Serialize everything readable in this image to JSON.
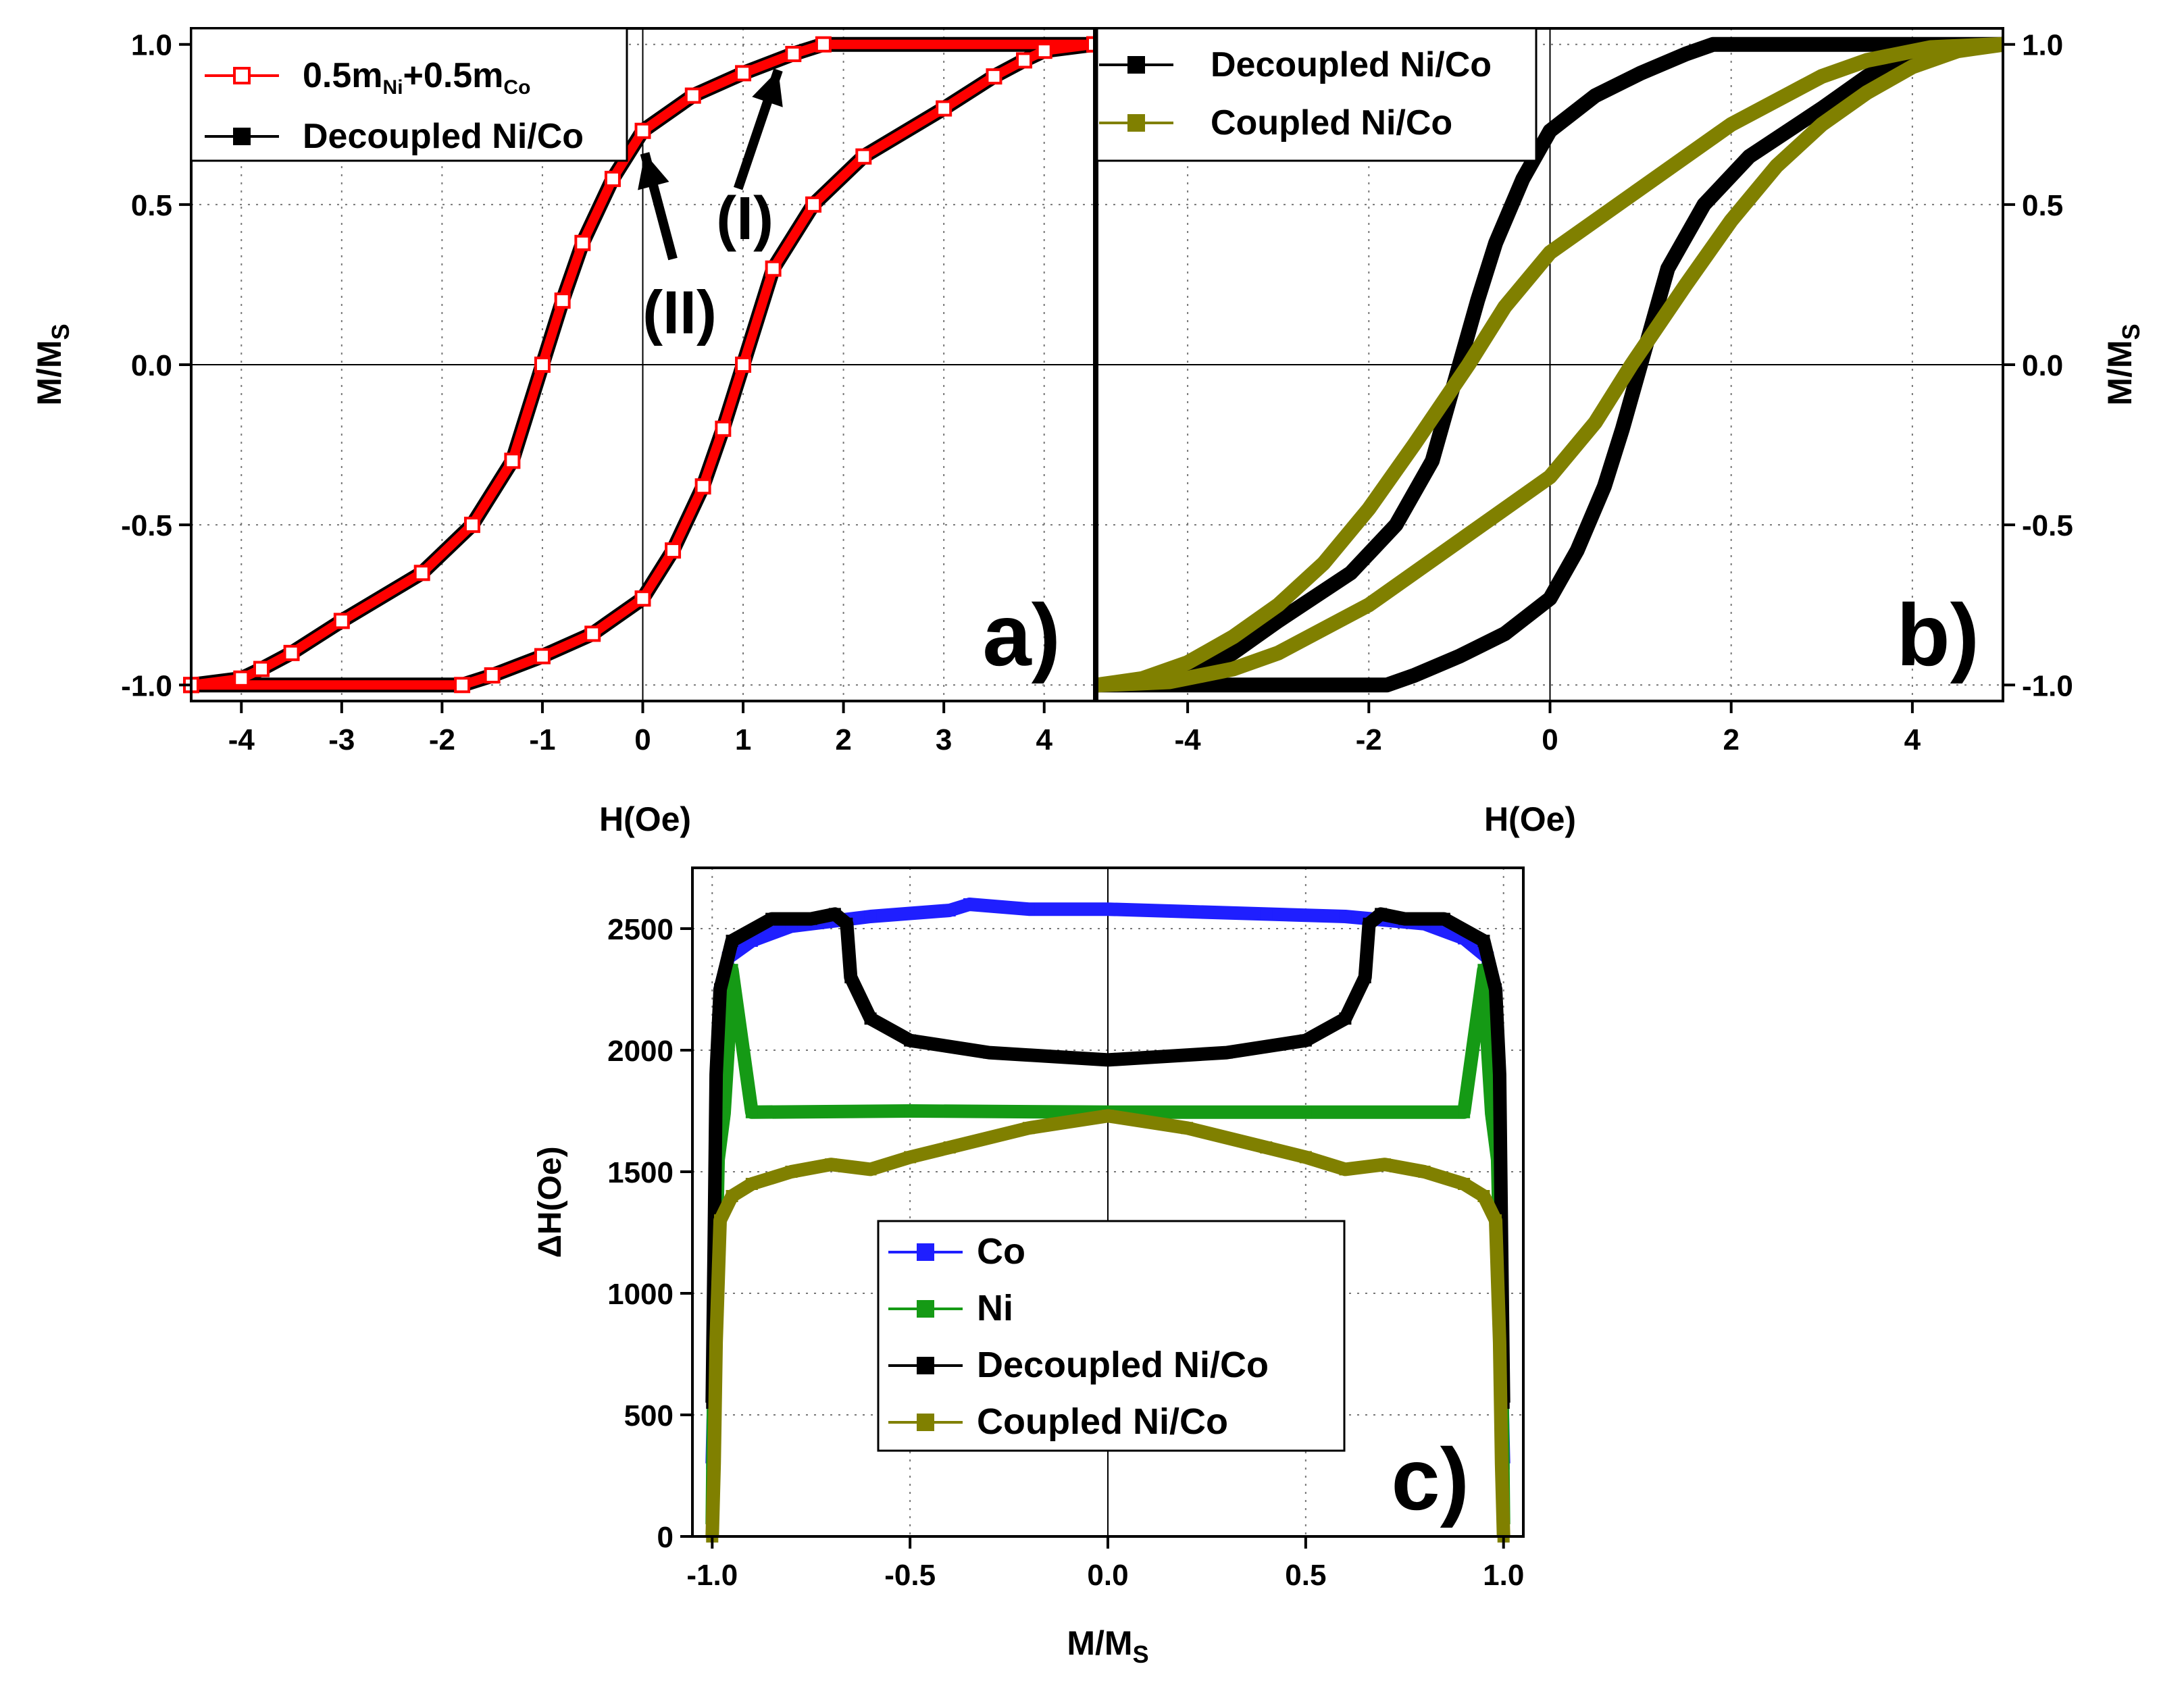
{
  "chart_data": [
    {
      "id": "a",
      "type": "line",
      "panel_label": "a)",
      "xlabel": "H(Oe)",
      "ylabel_main": "M/M",
      "ylabel_sub": "S",
      "xlim": [
        -4.5,
        4.5
      ],
      "ylim": [
        -1.05,
        1.05
      ],
      "xticks": [
        -4,
        -3,
        -2,
        -1,
        0,
        1,
        2,
        3,
        4
      ],
      "xtick_labels": [
        "-4",
        "-3",
        "-2",
        "-1",
        "0",
        "1",
        "2",
        "3",
        "4"
      ],
      "yticks": [
        -1.0,
        -0.5,
        0.0,
        0.5,
        1.0
      ],
      "ytick_labels": [
        "-1.0",
        "-0.5",
        "0.0",
        "0.5",
        "1.0"
      ],
      "grid": true,
      "legend_position": "top-left",
      "legend": [
        {
          "main": "0.5m",
          "sub1": "Ni",
          "mid": "+0.5m",
          "sub2": "Co",
          "color": "#ff0000",
          "marker": "open-square"
        },
        {
          "main": "Decoupled Ni/Co",
          "color": "#000000",
          "marker": "filled-square"
        }
      ],
      "annotations": [
        {
          "text": "(I)",
          "arrow_from": [
            0.95,
            0.55
          ],
          "arrow_to": [
            1.35,
            0.92
          ]
        },
        {
          "text": "(II)",
          "arrow_from": [
            0.3,
            0.33
          ],
          "arrow_to": [
            0.02,
            0.66
          ]
        }
      ],
      "series": [
        {
          "name": "Decoupled Ni/Co",
          "color": "#000000",
          "marker": "filled-square",
          "descending": {
            "x": [
              4.5,
              1.8,
              1.5,
              1.0,
              0.5,
              0.0,
              -0.3,
              -0.6,
              -0.8,
              -1.0,
              -1.3,
              -1.7,
              -2.2,
              -3.0,
              -3.5,
              -3.8,
              -4.0,
              -4.5
            ],
            "y": [
              1.0,
              1.0,
              0.97,
              0.91,
              0.84,
              0.73,
              0.58,
              0.38,
              0.2,
              0.0,
              -0.3,
              -0.5,
              -0.65,
              -0.8,
              -0.9,
              -0.95,
              -0.98,
              -1.0
            ]
          },
          "ascending": {
            "x": [
              -4.5,
              -1.8,
              -1.5,
              -1.0,
              -0.5,
              0.0,
              0.3,
              0.6,
              0.8,
              1.0,
              1.3,
              1.7,
              2.2,
              3.0,
              3.5,
              3.8,
              4.0,
              4.5
            ],
            "y": [
              -1.0,
              -1.0,
              -0.97,
              -0.91,
              -0.84,
              -0.73,
              -0.58,
              -0.38,
              -0.2,
              0.0,
              0.3,
              0.5,
              0.65,
              0.8,
              0.9,
              0.95,
              0.98,
              1.0
            ]
          }
        },
        {
          "name": "0.5mNi+0.5mCo",
          "color": "#ff0000",
          "marker": "open-square",
          "descending": {
            "x": [
              4.5,
              1.8,
              1.5,
              1.0,
              0.5,
              0.0,
              -0.3,
              -0.6,
              -0.8,
              -1.0,
              -1.3,
              -1.7,
              -2.2,
              -3.0,
              -3.5,
              -3.8,
              -4.0,
              -4.5
            ],
            "y": [
              1.0,
              1.0,
              0.97,
              0.91,
              0.84,
              0.73,
              0.58,
              0.38,
              0.2,
              0.0,
              -0.3,
              -0.5,
              -0.65,
              -0.8,
              -0.9,
              -0.95,
              -0.98,
              -1.0
            ]
          },
          "ascending": {
            "x": [
              -4.5,
              -1.8,
              -1.5,
              -1.0,
              -0.5,
              0.0,
              0.3,
              0.6,
              0.8,
              1.0,
              1.3,
              1.7,
              2.2,
              3.0,
              3.5,
              3.8,
              4.0,
              4.5
            ],
            "y": [
              -1.0,
              -1.0,
              -0.97,
              -0.91,
              -0.84,
              -0.73,
              -0.58,
              -0.38,
              -0.2,
              0.0,
              0.3,
              0.5,
              0.65,
              0.8,
              0.9,
              0.95,
              0.98,
              1.0
            ]
          }
        }
      ]
    },
    {
      "id": "b",
      "type": "line",
      "panel_label": "b)",
      "xlabel": "H(Oe)",
      "ylabel_main": "M/M",
      "ylabel_sub": "S",
      "xlim": [
        -5,
        5
      ],
      "ylim": [
        -1.05,
        1.05
      ],
      "xticks": [
        -4,
        -2,
        0,
        2,
        4
      ],
      "xtick_labels": [
        "-4",
        "-2",
        "0",
        "2",
        "4"
      ],
      "yticks": [
        -1.0,
        -0.5,
        0.0,
        0.5,
        1.0
      ],
      "ytick_labels": [
        "-1.0",
        "-0.5",
        "0.0",
        "0.5",
        "1.0"
      ],
      "grid": true,
      "legend_position": "top-left",
      "legend": [
        {
          "main": "Decoupled Ni/Co",
          "color": "#000000",
          "marker": "filled-square"
        },
        {
          "main": "Coupled Ni/Co",
          "color": "#808000",
          "marker": "filled-square"
        }
      ],
      "series": [
        {
          "name": "Decoupled Ni/Co",
          "color": "#000000",
          "marker": "filled-square",
          "descending": {
            "x": [
              5.0,
              1.8,
              1.5,
              1.0,
              0.5,
              0.0,
              -0.3,
              -0.6,
              -0.8,
              -1.0,
              -1.3,
              -1.7,
              -2.2,
              -3.0,
              -3.5,
              -3.8,
              -4.0,
              -5.0
            ],
            "y": [
              1.0,
              1.0,
              0.97,
              0.91,
              0.84,
              0.73,
              0.58,
              0.38,
              0.2,
              0.0,
              -0.3,
              -0.5,
              -0.65,
              -0.8,
              -0.9,
              -0.95,
              -0.98,
              -1.0
            ]
          },
          "ascending": {
            "x": [
              -5.0,
              -1.8,
              -1.5,
              -1.0,
              -0.5,
              0.0,
              0.3,
              0.6,
              0.8,
              1.0,
              1.3,
              1.7,
              2.2,
              3.0,
              3.5,
              3.8,
              4.0,
              5.0
            ],
            "y": [
              -1.0,
              -1.0,
              -0.97,
              -0.91,
              -0.84,
              -0.73,
              -0.58,
              -0.38,
              -0.2,
              0.0,
              0.3,
              0.5,
              0.65,
              0.8,
              0.9,
              0.95,
              0.98,
              1.0
            ]
          }
        },
        {
          "name": "Coupled Ni/Co",
          "color": "#808000",
          "marker": "filled-square",
          "descending": {
            "x": [
              5.0,
              4.2,
              3.5,
              3.0,
              2.0,
              1.0,
              0.0,
              -0.5,
              -0.9,
              -1.5,
              -2.0,
              -2.5,
              -3.0,
              -3.5,
              -4.0,
              -4.5,
              -5.0
            ],
            "y": [
              1.0,
              0.99,
              0.95,
              0.9,
              0.75,
              0.55,
              0.35,
              0.18,
              0.0,
              -0.25,
              -0.45,
              -0.62,
              -0.75,
              -0.85,
              -0.93,
              -0.98,
              -1.0
            ]
          },
          "ascending": {
            "x": [
              -5.0,
              -4.2,
              -3.5,
              -3.0,
              -2.0,
              -1.0,
              0.0,
              0.5,
              0.9,
              1.5,
              2.0,
              2.5,
              3.0,
              3.5,
              4.0,
              4.5,
              5.0
            ],
            "y": [
              -1.0,
              -0.99,
              -0.95,
              -0.9,
              -0.75,
              -0.55,
              -0.35,
              -0.18,
              0.0,
              0.25,
              0.45,
              0.62,
              0.75,
              0.85,
              0.93,
              0.98,
              1.0
            ]
          }
        }
      ]
    },
    {
      "id": "c",
      "type": "line",
      "panel_label": "c)",
      "xlabel_main": "M/M",
      "xlabel_sub": "S",
      "ylabel": "ΔH(Oe)",
      "xlim": [
        -1.05,
        1.05
      ],
      "ylim": [
        0,
        2750
      ],
      "xticks": [
        -1.0,
        -0.5,
        0.0,
        0.5,
        1.0
      ],
      "xtick_labels": [
        "-1.0",
        "-0.5",
        "0.0",
        "0.5",
        "1.0"
      ],
      "yticks": [
        0,
        500,
        1000,
        1500,
        2000,
        2500
      ],
      "ytick_labels": [
        "0",
        "500",
        "1000",
        "1500",
        "2000",
        "2500"
      ],
      "grid": true,
      "legend_position": "bottom-center",
      "legend": [
        {
          "main": "Co",
          "color": "#1f1fff",
          "marker": "filled-square"
        },
        {
          "main": "Ni",
          "color": "#159a15",
          "marker": "filled-square"
        },
        {
          "main": "Decoupled Ni/Co",
          "color": "#000000",
          "marker": "filled-square"
        },
        {
          "main": "Coupled Ni/Co",
          "color": "#808000",
          "marker": "filled-square"
        }
      ],
      "series": [
        {
          "name": "Co",
          "color": "#1f1fff",
          "x": [
            -1.0,
            -0.99,
            -0.985,
            -0.98,
            -0.96,
            -0.9,
            -0.8,
            -0.6,
            -0.4,
            -0.35,
            -0.2,
            0.0,
            0.2,
            0.4,
            0.6,
            0.8,
            0.9,
            0.96,
            0.98,
            0.985,
            0.99,
            1.0
          ],
          "y": [
            300,
            1000,
            1800,
            2250,
            2380,
            2450,
            2510,
            2550,
            2575,
            2600,
            2580,
            2580,
            2570,
            2560,
            2550,
            2520,
            2460,
            2380,
            2250,
            1800,
            1000,
            300
          ]
        },
        {
          "name": "Ni",
          "color": "#159a15",
          "x": [
            -1.0,
            -0.995,
            -0.985,
            -0.97,
            -0.96,
            -0.95,
            -0.9,
            -0.5,
            0.0,
            0.5,
            0.9,
            0.95,
            0.96,
            0.97,
            0.985,
            0.995,
            1.0
          ],
          "y": [
            50,
            800,
            1550,
            1740,
            2000,
            2330,
            1745,
            1750,
            1745,
            1745,
            1745,
            2330,
            2000,
            1740,
            1550,
            800,
            50
          ],
          "dotted_edges": true
        },
        {
          "name": "Decoupled Ni/Co",
          "color": "#000000",
          "x": [
            -1.0,
            -0.995,
            -0.99,
            -0.98,
            -0.95,
            -0.85,
            -0.75,
            -0.69,
            -0.66,
            -0.65,
            -0.6,
            -0.5,
            -0.3,
            -0.1,
            0.0,
            0.1,
            0.3,
            0.5,
            0.6,
            0.65,
            0.66,
            0.69,
            0.75,
            0.85,
            0.95,
            0.98,
            0.99,
            0.995,
            1.0
          ],
          "y": [
            550,
            1200,
            1900,
            2250,
            2450,
            2540,
            2540,
            2560,
            2520,
            2300,
            2130,
            2040,
            1990,
            1970,
            1960,
            1970,
            1990,
            2040,
            2130,
            2300,
            2520,
            2560,
            2540,
            2540,
            2450,
            2250,
            1900,
            1200,
            550
          ]
        },
        {
          "name": "Coupled Ni/Co",
          "color": "#808000",
          "x": [
            -1.0,
            -0.995,
            -0.99,
            -0.98,
            -0.95,
            -0.9,
            -0.8,
            -0.7,
            -0.6,
            -0.5,
            -0.4,
            -0.2,
            0.0,
            0.2,
            0.4,
            0.5,
            0.6,
            0.7,
            0.8,
            0.9,
            0.95,
            0.98,
            0.99,
            0.995,
            1.0
          ],
          "y": [
            0,
            300,
            800,
            1300,
            1400,
            1450,
            1500,
            1530,
            1510,
            1560,
            1600,
            1680,
            1730,
            1680,
            1600,
            1560,
            1510,
            1530,
            1500,
            1450,
            1400,
            1300,
            800,
            300,
            0
          ]
        }
      ]
    }
  ]
}
